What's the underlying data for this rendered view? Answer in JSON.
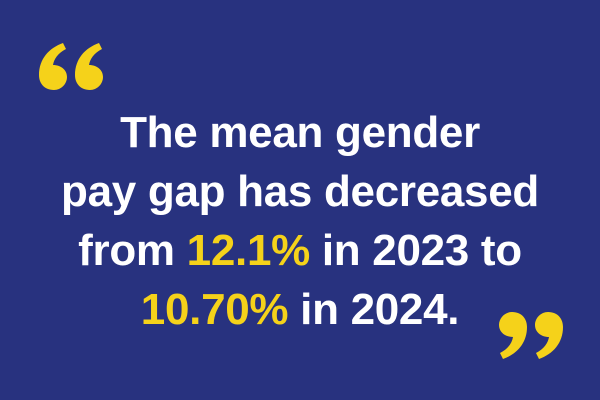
{
  "quote": {
    "line1": "The mean gender",
    "line2": "pay gap has decreased",
    "line3_prefix": "from ",
    "line3_value": "12.1%",
    "line3_suffix": " in 2023 to",
    "line4_value": "10.70%",
    "line4_suffix": " in 2024."
  },
  "colors": {
    "background": "#28327f",
    "text": "#ffffff",
    "highlight": "#f5d21a"
  },
  "icons": {
    "open": "open-quote-icon",
    "close": "close-quote-icon"
  }
}
